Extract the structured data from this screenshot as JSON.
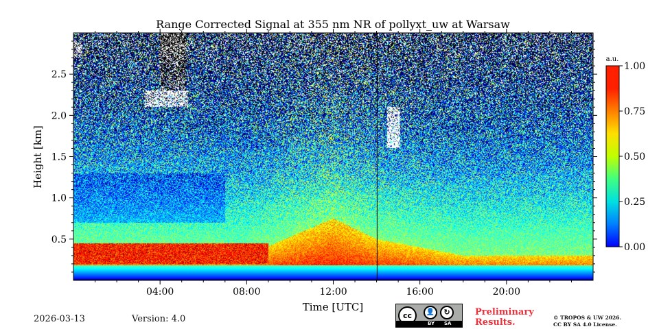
{
  "chart_data": {
    "type": "heatmap",
    "title": "Range Corrected Signal at 355 nm NR of pollyxt_uw at Warsaw",
    "xlabel": "Time [UTC]",
    "ylabel": "Height [km]",
    "x_unit": "hours UTC",
    "xlim": [
      0,
      24
    ],
    "ylim": [
      0,
      3.0
    ],
    "x_ticks": [
      {
        "value": 4,
        "label": "04:00"
      },
      {
        "value": 8,
        "label": "08:00"
      },
      {
        "value": 12,
        "label": "12:00"
      },
      {
        "value": 16,
        "label": "16:00"
      },
      {
        "value": 20,
        "label": "20:00"
      }
    ],
    "y_ticks": [
      {
        "value": 0.5,
        "label": "0.5"
      },
      {
        "value": 1.0,
        "label": "1.0"
      },
      {
        "value": 1.5,
        "label": "1.5"
      },
      {
        "value": 2.0,
        "label": "2.0"
      },
      {
        "value": 2.5,
        "label": "2.5"
      }
    ],
    "colorbar": {
      "unit_label": "a.u.",
      "range": [
        0.0,
        1.0
      ],
      "colormap": "jet",
      "ticks": [
        {
          "value": 0.0,
          "label": "0.00"
        },
        {
          "value": 0.25,
          "label": "0.25"
        },
        {
          "value": 0.5,
          "label": "0.50"
        },
        {
          "value": 0.75,
          "label": "0.75"
        },
        {
          "value": 1.0,
          "label": "1.00"
        }
      ]
    },
    "field_description": {
      "surface_layer": {
        "height_km": [
          0.0,
          0.18
        ],
        "value": 0.05
      },
      "boundary_layer_top_km": [
        [
          0,
          0.35
        ],
        [
          4,
          0.35
        ],
        [
          8,
          0.3
        ],
        [
          12,
          0.75
        ],
        [
          14,
          0.5
        ],
        [
          18,
          0.3
        ],
        [
          24,
          0.3
        ]
      ],
      "residual_layer": {
        "time_h": [
          0,
          9
        ],
        "value": 0.9
      },
      "clouds": [
        {
          "time_h": [
            0.0,
            0.4
          ],
          "height_km": [
            2.7,
            2.9
          ]
        },
        {
          "time_h": [
            3.3,
            5.3
          ],
          "height_km": [
            2.1,
            2.3
          ]
        },
        {
          "time_h": [
            14.5,
            15.1
          ],
          "height_km": [
            1.6,
            2.1
          ]
        }
      ],
      "data_gap_time_h": 14.0
    }
  },
  "footer": {
    "date": "2026-03-13",
    "version": "Version: 4.0",
    "preliminary_line1": "Preliminary",
    "preliminary_line2": "Results.",
    "copyright_line1": "© TROPOS & UW 2026.",
    "copyright_line2": "CC BY SA 4.0 License.",
    "license_badge": {
      "cc": "cc",
      "by": "BY",
      "sa": "SA"
    }
  }
}
